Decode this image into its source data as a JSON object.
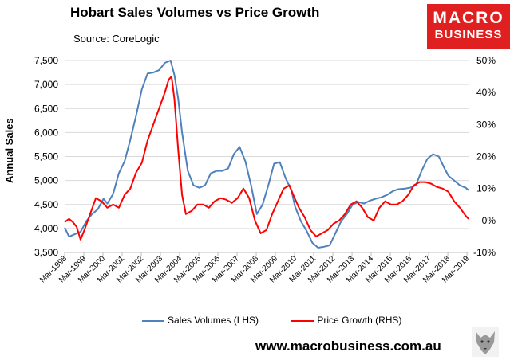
{
  "title": "Hobart Sales Volumes vs Price Growth",
  "source": "Source: CoreLogic",
  "logo": {
    "line1": "MACRO",
    "line2": "BUSINESS"
  },
  "url": "www.macrobusiness.com.au",
  "chart_data": {
    "type": "line",
    "ylabel": "Annual Sales",
    "ylim_left": [
      3500,
      7500
    ],
    "ylim_right": [
      -0.1,
      0.5
    ],
    "left_ticks": [
      "3,500",
      "4,000",
      "4,500",
      "5,000",
      "5,500",
      "6,000",
      "6,500",
      "7,000",
      "7,500"
    ],
    "right_ticks": [
      "-10%",
      "0%",
      "10%",
      "20%",
      "30%",
      "40%",
      "50%"
    ],
    "x_ticks": [
      "Mar-1998",
      "Mar-1999",
      "Mar-2000",
      "Mar-2001",
      "Mar-2002",
      "Mar-2003",
      "Mar-2004",
      "Mar-2005",
      "Mar-2006",
      "Mar-2007",
      "Mar-2008",
      "Mar-2009",
      "Mar-2010",
      "Mar-2011",
      "Mar-2012",
      "Mar-2013",
      "Mar-2014",
      "Mar-2015",
      "Mar-2016",
      "Mar-2017",
      "Mar-2018",
      "Mar-2019"
    ],
    "series": [
      {
        "name": "Sales Volumes (LHS)",
        "axis": "left",
        "color": "#4f81bd",
        "x": [
          1998.17,
          1998.4,
          1998.7,
          1999.0,
          1999.3,
          1999.6,
          1999.9,
          2000.2,
          2000.4,
          2000.7,
          2001.0,
          2001.3,
          2001.6,
          2001.9,
          2002.2,
          2002.5,
          2002.8,
          2003.1,
          2003.4,
          2003.7,
          2003.9,
          2004.1,
          2004.3,
          2004.6,
          2004.9,
          2005.2,
          2005.5,
          2005.8,
          2006.1,
          2006.4,
          2006.7,
          2007.0,
          2007.3,
          2007.6,
          2007.9,
          2008.2,
          2008.5,
          2008.8,
          2009.1,
          2009.4,
          2009.7,
          2010.0,
          2010.2,
          2010.5,
          2010.8,
          2011.1,
          2011.4,
          2011.7,
          2012.0,
          2012.3,
          2012.6,
          2012.9,
          2013.2,
          2013.5,
          2013.8,
          2014.1,
          2014.4,
          2014.7,
          2015.0,
          2015.3,
          2015.6,
          2015.9,
          2016.2,
          2016.5,
          2016.8,
          2017.1,
          2017.4,
          2017.7,
          2018.0,
          2018.2,
          2018.5,
          2018.8,
          2019.1,
          2019.25
        ],
        "values": [
          4020,
          3830,
          3880,
          3930,
          4150,
          4300,
          4400,
          4620,
          4520,
          4720,
          5150,
          5400,
          5850,
          6350,
          6900,
          7230,
          7250,
          7300,
          7450,
          7500,
          7200,
          6700,
          6000,
          5200,
          4900,
          4850,
          4900,
          5150,
          5200,
          5200,
          5250,
          5550,
          5700,
          5400,
          4900,
          4300,
          4500,
          4900,
          5350,
          5380,
          5050,
          4800,
          4450,
          4150,
          3950,
          3700,
          3600,
          3620,
          3650,
          3900,
          4150,
          4300,
          4500,
          4550,
          4520,
          4580,
          4620,
          4650,
          4700,
          4780,
          4820,
          4830,
          4850,
          4900,
          5200,
          5450,
          5550,
          5500,
          5250,
          5100,
          5000,
          4900,
          4850,
          4800
        ]
      },
      {
        "name": "Price Growth (RHS)",
        "axis": "right",
        "color": "#ff0000",
        "x": [
          1998.17,
          1998.4,
          1998.6,
          1998.8,
          1999.0,
          1999.2,
          1999.5,
          1999.8,
          2000.1,
          2000.4,
          2000.7,
          2001.0,
          2001.3,
          2001.6,
          2001.9,
          2002.2,
          2002.5,
          2002.8,
          2003.1,
          2003.4,
          2003.6,
          2003.75,
          2003.9,
          2004.1,
          2004.3,
          2004.5,
          2004.8,
          2005.1,
          2005.4,
          2005.7,
          2006.0,
          2006.3,
          2006.6,
          2006.9,
          2007.2,
          2007.5,
          2007.8,
          2008.1,
          2008.4,
          2008.7,
          2009.0,
          2009.3,
          2009.6,
          2009.9,
          2010.1,
          2010.4,
          2010.7,
          2011.0,
          2011.3,
          2011.6,
          2011.9,
          2012.2,
          2012.5,
          2012.8,
          2013.1,
          2013.4,
          2013.7,
          2014.0,
          2014.3,
          2014.6,
          2014.9,
          2015.2,
          2015.5,
          2015.8,
          2016.1,
          2016.4,
          2016.7,
          2017.0,
          2017.3,
          2017.6,
          2017.9,
          2018.2,
          2018.5,
          2018.8,
          2019.1,
          2019.25
        ],
        "values": [
          -0.005,
          0.005,
          -0.005,
          -0.02,
          -0.06,
          -0.03,
          0.02,
          0.07,
          0.06,
          0.04,
          0.05,
          0.04,
          0.08,
          0.1,
          0.15,
          0.18,
          0.25,
          0.3,
          0.35,
          0.4,
          0.44,
          0.45,
          0.38,
          0.22,
          0.08,
          0.02,
          0.03,
          0.05,
          0.05,
          0.04,
          0.06,
          0.07,
          0.065,
          0.055,
          0.07,
          0.1,
          0.07,
          0.0,
          -0.04,
          -0.03,
          0.02,
          0.06,
          0.1,
          0.11,
          0.08,
          0.04,
          0.01,
          -0.03,
          -0.05,
          -0.04,
          -0.03,
          -0.01,
          0.0,
          0.02,
          0.05,
          0.06,
          0.04,
          0.01,
          0.0,
          0.04,
          0.06,
          0.05,
          0.05,
          0.06,
          0.08,
          0.11,
          0.12,
          0.12,
          0.115,
          0.105,
          0.1,
          0.09,
          0.06,
          0.04,
          0.015,
          0.005
        ]
      }
    ]
  }
}
